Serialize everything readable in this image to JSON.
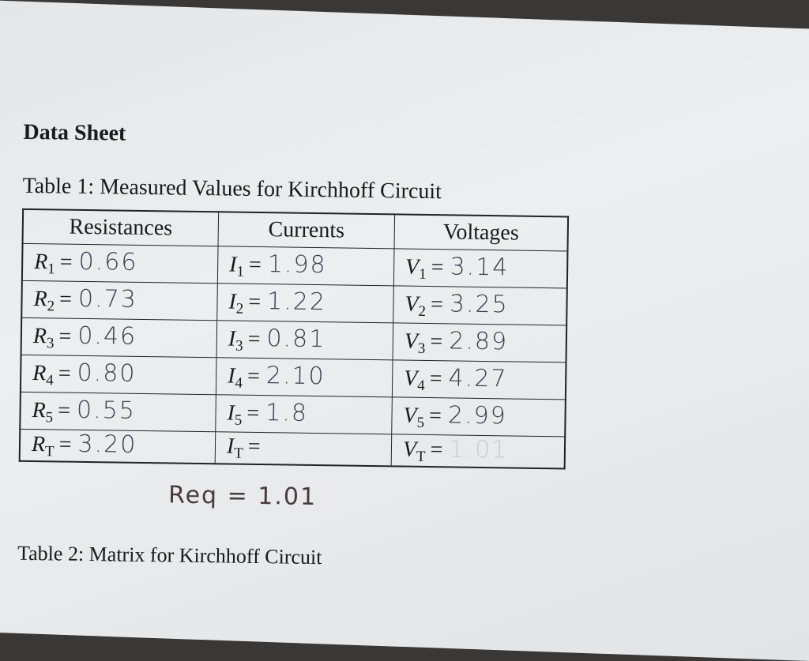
{
  "header": {
    "title": "Data Sheet",
    "caption": "Table 1: Measured Values for Kirchhoff Circuit"
  },
  "table": {
    "columns": [
      "Resistances",
      "Currents",
      "Voltages"
    ],
    "rows": [
      [
        {
          "symbol": "R",
          "sub": "1",
          "eq": "=",
          "value": "0.66"
        },
        {
          "symbol": "I",
          "sub": "1",
          "eq": "=",
          "value": "1.98"
        },
        {
          "symbol": "V",
          "sub": "1",
          "eq": "=",
          "value": "3.14"
        }
      ],
      [
        {
          "symbol": "R",
          "sub": "2",
          "eq": "=",
          "value": "0.73"
        },
        {
          "symbol": "I",
          "sub": "2",
          "eq": "=",
          "value": "1.22"
        },
        {
          "symbol": "V",
          "sub": "2",
          "eq": "=",
          "value": "3.25"
        }
      ],
      [
        {
          "symbol": "R",
          "sub": "3",
          "eq": "=",
          "value": "0.46"
        },
        {
          "symbol": "I",
          "sub": "3",
          "eq": "=",
          "value": "0.81"
        },
        {
          "symbol": "V",
          "sub": "3",
          "eq": "=",
          "value": "2.89"
        }
      ],
      [
        {
          "symbol": "R",
          "sub": "4",
          "eq": "=",
          "value": "0.80"
        },
        {
          "symbol": "I",
          "sub": "4",
          "eq": "=",
          "value": "2.10"
        },
        {
          "symbol": "V",
          "sub": "4",
          "eq": "=",
          "value": "4.27"
        }
      ],
      [
        {
          "symbol": "R",
          "sub": "5",
          "eq": "=",
          "value": "0.55"
        },
        {
          "symbol": "I",
          "sub": "5",
          "eq": "=",
          "value": "1.8"
        },
        {
          "symbol": "V",
          "sub": "5",
          "eq": "=",
          "value": "2.99"
        }
      ],
      [
        {
          "symbol": "R",
          "sub": "T",
          "eq": "=",
          "value": "3.20"
        },
        {
          "symbol": "I",
          "sub": "T",
          "eq": "="
        },
        {
          "symbol": "V",
          "sub": "T",
          "eq": "=",
          "value": "1.01",
          "faint": true
        }
      ]
    ]
  },
  "note": "Req = 1.01",
  "footer": {
    "caption": "Table 2: Matrix for Kirchhoff Circuit"
  }
}
